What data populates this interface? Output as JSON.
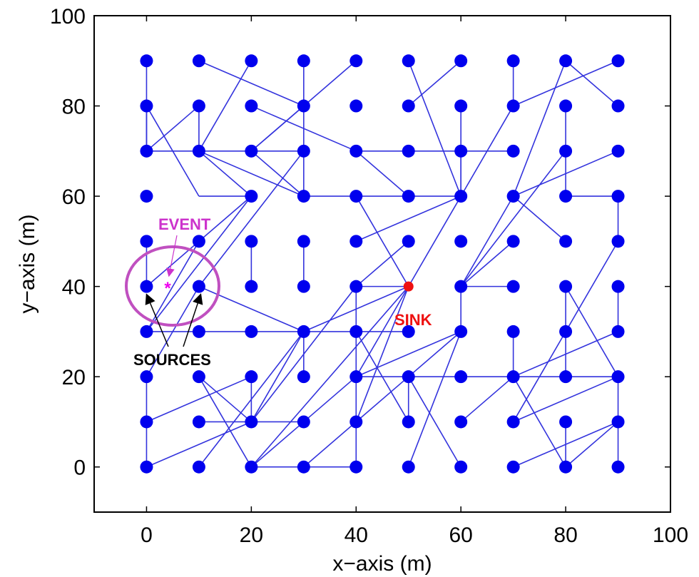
{
  "chart_data": {
    "type": "scatter",
    "title": "",
    "xlabel": "x−axis (m)",
    "ylabel": "y−axis (m)",
    "xlim": [
      -10,
      100
    ],
    "ylim": [
      -10,
      100
    ],
    "xticks": [
      0,
      20,
      40,
      60,
      80,
      100
    ],
    "yticks": [
      0,
      20,
      40,
      60,
      80,
      100
    ],
    "grid": false,
    "node_color": "#0000ee",
    "link_color": "#3333dd",
    "nodes_x": [
      0,
      10,
      20,
      30,
      40,
      50,
      60,
      70,
      80,
      90
    ],
    "nodes_y": [
      0,
      10,
      20,
      30,
      40,
      50,
      60,
      70,
      80,
      90
    ],
    "missing_nodes": [
      [
        10,
        60
      ]
    ],
    "links": [
      [
        [
          0,
          90
        ],
        [
          0,
          70
        ]
      ],
      [
        [
          0,
          80
        ],
        [
          0,
          70
        ]
      ],
      [
        [
          0,
          80
        ],
        [
          10,
          60
        ]
      ],
      [
        [
          0,
          70
        ],
        [
          30,
          70
        ]
      ],
      [
        [
          0,
          70
        ],
        [
          10,
          80
        ]
      ],
      [
        [
          10,
          90
        ],
        [
          30,
          80
        ]
      ],
      [
        [
          10,
          80
        ],
        [
          10,
          70
        ]
      ],
      [
        [
          10,
          70
        ],
        [
          30,
          60
        ]
      ],
      [
        [
          10,
          70
        ],
        [
          20,
          60
        ]
      ],
      [
        [
          10,
          60
        ],
        [
          20,
          60
        ]
      ],
      [
        [
          20,
          90
        ],
        [
          10,
          70
        ]
      ],
      [
        [
          20,
          80
        ],
        [
          40,
          70
        ]
      ],
      [
        [
          20,
          70
        ],
        [
          30,
          80
        ]
      ],
      [
        [
          20,
          70
        ],
        [
          30,
          60
        ]
      ],
      [
        [
          30,
          90
        ],
        [
          30,
          60
        ]
      ],
      [
        [
          40,
          90
        ],
        [
          20,
          70
        ]
      ],
      [
        [
          30,
          70
        ],
        [
          10,
          40
        ]
      ],
      [
        [
          20,
          60
        ],
        [
          0,
          40
        ]
      ],
      [
        [
          20,
          60
        ],
        [
          0,
          30
        ]
      ],
      [
        [
          30,
          60
        ],
        [
          60,
          60
        ]
      ],
      [
        [
          40,
          70
        ],
        [
          70,
          70
        ]
      ],
      [
        [
          40,
          60
        ],
        [
          50,
          40
        ]
      ],
      [
        [
          50,
          60
        ],
        [
          40,
          70
        ]
      ],
      [
        [
          50,
          90
        ],
        [
          60,
          60
        ]
      ],
      [
        [
          60,
          90
        ],
        [
          50,
          80
        ]
      ],
      [
        [
          70,
          90
        ],
        [
          70,
          80
        ]
      ],
      [
        [
          70,
          80
        ],
        [
          90,
          90
        ]
      ],
      [
        [
          70,
          80
        ],
        [
          60,
          60
        ]
      ],
      [
        [
          80,
          90
        ],
        [
          90,
          80
        ]
      ],
      [
        [
          80,
          90
        ],
        [
          70,
          60
        ]
      ],
      [
        [
          80,
          80
        ],
        [
          80,
          60
        ]
      ],
      [
        [
          80,
          60
        ],
        [
          90,
          60
        ]
      ],
      [
        [
          90,
          60
        ],
        [
          90,
          50
        ]
      ],
      [
        [
          90,
          70
        ],
        [
          70,
          60
        ]
      ],
      [
        [
          80,
          70
        ],
        [
          60,
          40
        ]
      ],
      [
        [
          70,
          60
        ],
        [
          60,
          40
        ]
      ],
      [
        [
          70,
          60
        ],
        [
          80,
          50
        ]
      ],
      [
        [
          60,
          70
        ],
        [
          60,
          60
        ]
      ],
      [
        [
          60,
          60
        ],
        [
          40,
          50
        ]
      ],
      [
        [
          60,
          60
        ],
        [
          50,
          40
        ]
      ],
      [
        [
          60,
          40
        ],
        [
          70,
          40
        ]
      ],
      [
        [
          60,
          40
        ],
        [
          60,
          30
        ]
      ],
      [
        [
          70,
          50
        ],
        [
          60,
          40
        ]
      ],
      [
        [
          50,
          50
        ],
        [
          40,
          40
        ]
      ],
      [
        [
          50,
          40
        ],
        [
          40,
          40
        ]
      ],
      [
        [
          50,
          40
        ],
        [
          30,
          30
        ]
      ],
      [
        [
          50,
          40
        ],
        [
          40,
          20
        ]
      ],
      [
        [
          50,
          40
        ],
        [
          40,
          10
        ]
      ],
      [
        [
          50,
          40
        ],
        [
          20,
          0
        ]
      ],
      [
        [
          60,
          80
        ],
        [
          60,
          60
        ]
      ],
      [
        [
          0,
          50
        ],
        [
          0,
          40
        ]
      ],
      [
        [
          10,
          50
        ],
        [
          0,
          30
        ]
      ],
      [
        [
          10,
          40
        ],
        [
          30,
          30
        ]
      ],
      [
        [
          0,
          30
        ],
        [
          50,
          30
        ]
      ],
      [
        [
          20,
          50
        ],
        [
          20,
          40
        ]
      ],
      [
        [
          30,
          50
        ],
        [
          30,
          40
        ]
      ],
      [
        [
          30,
          30
        ],
        [
          30,
          20
        ]
      ],
      [
        [
          30,
          30
        ],
        [
          20,
          10
        ]
      ],
      [
        [
          40,
          40
        ],
        [
          40,
          30
        ]
      ],
      [
        [
          40,
          40
        ],
        [
          20,
          10
        ]
      ],
      [
        [
          40,
          30
        ],
        [
          40,
          0
        ]
      ],
      [
        [
          40,
          30
        ],
        [
          50,
          10
        ]
      ],
      [
        [
          60,
          30
        ],
        [
          50,
          20
        ]
      ],
      [
        [
          60,
          30
        ],
        [
          40,
          20
        ]
      ],
      [
        [
          50,
          20
        ],
        [
          50,
          10
        ]
      ],
      [
        [
          50,
          20
        ],
        [
          60,
          0
        ]
      ],
      [
        [
          50,
          20
        ],
        [
          30,
          0
        ]
      ],
      [
        [
          60,
          20
        ],
        [
          70,
          20
        ]
      ],
      [
        [
          70,
          20
        ],
        [
          90,
          20
        ]
      ],
      [
        [
          70,
          20
        ],
        [
          70,
          30
        ]
      ],
      [
        [
          70,
          20
        ],
        [
          60,
          10
        ]
      ],
      [
        [
          70,
          20
        ],
        [
          80,
          0
        ]
      ],
      [
        [
          70,
          20
        ],
        [
          90,
          30
        ]
      ],
      [
        [
          80,
          40
        ],
        [
          90,
          20
        ]
      ],
      [
        [
          80,
          40
        ],
        [
          80,
          20
        ]
      ],
      [
        [
          90,
          40
        ],
        [
          90,
          30
        ]
      ],
      [
        [
          90,
          50
        ],
        [
          70,
          10
        ]
      ],
      [
        [
          90,
          20
        ],
        [
          70,
          10
        ]
      ],
      [
        [
          90,
          20
        ],
        [
          90,
          0
        ]
      ],
      [
        [
          90,
          10
        ],
        [
          70,
          0
        ]
      ],
      [
        [
          90,
          10
        ],
        [
          80,
          0
        ]
      ],
      [
        [
          80,
          10
        ],
        [
          80,
          0
        ]
      ],
      [
        [
          0,
          20
        ],
        [
          0,
          0
        ]
      ],
      [
        [
          0,
          20
        ],
        [
          10,
          40
        ]
      ],
      [
        [
          0,
          10
        ],
        [
          20,
          20
        ]
      ],
      [
        [
          10,
          20
        ],
        [
          20,
          10
        ]
      ],
      [
        [
          10,
          20
        ],
        [
          20,
          0
        ]
      ],
      [
        [
          0,
          0
        ],
        [
          20,
          10
        ]
      ],
      [
        [
          10,
          10
        ],
        [
          30,
          10
        ]
      ],
      [
        [
          20,
          20
        ],
        [
          20,
          10
        ]
      ],
      [
        [
          30,
          10
        ],
        [
          40,
          20
        ]
      ],
      [
        [
          30,
          10
        ],
        [
          20,
          0
        ]
      ],
      [
        [
          20,
          0
        ],
        [
          40,
          0
        ]
      ],
      [
        [
          10,
          0
        ],
        [
          30,
          30
        ]
      ],
      [
        [
          60,
          30
        ],
        [
          50,
          0
        ]
      ],
      [
        [
          40,
          20
        ],
        [
          60,
          20
        ]
      ]
    ],
    "sink": {
      "x": 50,
      "y": 40,
      "label": "SINK",
      "color": "#ee1111"
    },
    "event": {
      "x": 4,
      "y": 40,
      "label": "EVENT",
      "color": "#cc33cc"
    },
    "sources": [
      [
        0,
        40
      ],
      [
        10,
        40
      ]
    ],
    "sources_label": "SOURCES",
    "event_circle_color": "#c050c0"
  }
}
